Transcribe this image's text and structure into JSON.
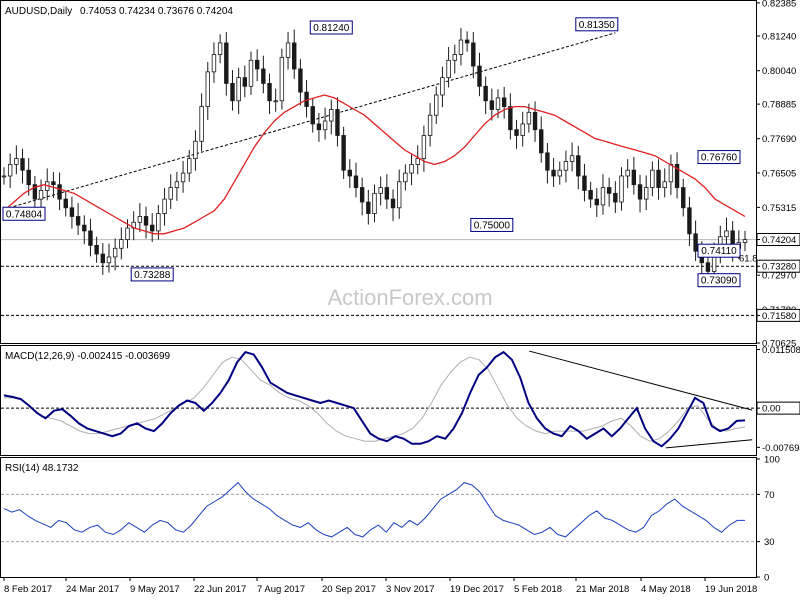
{
  "chart_data": [
    {
      "type": "line",
      "panel": "price",
      "title": "AUDUSD,Daily",
      "ohlc_header": "0.74053 0.74234 0.73676 0.74204",
      "watermark": "ActionForex.com",
      "ylim": [
        0.70625,
        0.8245
      ],
      "y_ticks": [
        "0.82385",
        "0.81240",
        "0.80040",
        "0.78885",
        "0.77690",
        "0.76505",
        "0.75315",
        "0.74204",
        "0.73280",
        "0.72970",
        "0.71780",
        "0.71580",
        "0.70625"
      ],
      "x_ticks": [
        "8 Feb 2017",
        "24 Mar 2017",
        "9 May 2017",
        "22 Jun 2017",
        "7 Aug 2017",
        "20 Sep 2017",
        "3 Nov 2017",
        "19 Dec 2017",
        "5 Feb 2018",
        "21 Mar 2018",
        "4 May 2018",
        "19 Jun 2018"
      ],
      "price_series": [
        0.764,
        0.768,
        0.77,
        0.766,
        0.761,
        0.756,
        0.759,
        0.762,
        0.761,
        0.756,
        0.753,
        0.75,
        0.747,
        0.745,
        0.74,
        0.737,
        0.734,
        0.736,
        0.739,
        0.742,
        0.746,
        0.748,
        0.75,
        0.747,
        0.745,
        0.751,
        0.756,
        0.76,
        0.762,
        0.765,
        0.77,
        0.776,
        0.788,
        0.8,
        0.806,
        0.81,
        0.796,
        0.79,
        0.798,
        0.795,
        0.804,
        0.801,
        0.796,
        0.79,
        0.79,
        0.805,
        0.81,
        0.801,
        0.793,
        0.788,
        0.782,
        0.78,
        0.783,
        0.787,
        0.778,
        0.766,
        0.764,
        0.76,
        0.755,
        0.751,
        0.758,
        0.76,
        0.756,
        0.753,
        0.762,
        0.765,
        0.768,
        0.77,
        0.778,
        0.785,
        0.792,
        0.798,
        0.804,
        0.806,
        0.811,
        0.81,
        0.802,
        0.795,
        0.79,
        0.787,
        0.791,
        0.788,
        0.78,
        0.778,
        0.782,
        0.786,
        0.78,
        0.772,
        0.766,
        0.764,
        0.766,
        0.769,
        0.771,
        0.764,
        0.759,
        0.756,
        0.754,
        0.76,
        0.758,
        0.755,
        0.764,
        0.766,
        0.761,
        0.756,
        0.76,
        0.766,
        0.76,
        0.762,
        0.768,
        0.76,
        0.753,
        0.744,
        0.738,
        0.734,
        0.731,
        0.738,
        0.743,
        0.745,
        0.739,
        0.741,
        0.742
      ],
      "ma_series": [
        0.752,
        0.755,
        0.758,
        0.76,
        0.761,
        0.76,
        0.759,
        0.758,
        0.756,
        0.754,
        0.752,
        0.75,
        0.748,
        0.746,
        0.745,
        0.744,
        0.744,
        0.745,
        0.746,
        0.748,
        0.75,
        0.752,
        0.756,
        0.762,
        0.768,
        0.774,
        0.779,
        0.783,
        0.786,
        0.788,
        0.79,
        0.791,
        0.792,
        0.791,
        0.789,
        0.787,
        0.785,
        0.782,
        0.779,
        0.776,
        0.773,
        0.771,
        0.769,
        0.768,
        0.769,
        0.771,
        0.774,
        0.778,
        0.782,
        0.785,
        0.787,
        0.788,
        0.788,
        0.787,
        0.786,
        0.785,
        0.783,
        0.781,
        0.779,
        0.777,
        0.776,
        0.775,
        0.774,
        0.773,
        0.772,
        0.771,
        0.769,
        0.767,
        0.765,
        0.763,
        0.76,
        0.756,
        0.754,
        0.752,
        0.75
      ],
      "annotations": [
        {
          "text": "0.74804",
          "x": 3,
          "y": 0.748
        },
        {
          "text": "0.73288",
          "x": 24,
          "y": 0.7329
        },
        {
          "text": "0.81240",
          "x": 53,
          "y": 0.8124
        },
        {
          "text": "0.75000",
          "x": 79,
          "y": 0.75
        },
        {
          "text": "0.81350",
          "x": 96,
          "y": 0.8135
        },
        {
          "text": "0.74110",
          "x": 126,
          "y": 0.7411
        },
        {
          "text": "0.76760",
          "x": 134,
          "y": 0.7676
        },
        {
          "text": "0.73090",
          "x": 142,
          "y": 0.7309
        }
      ],
      "fib_label": "61.8",
      "levels": [
        {
          "y": 0.742,
          "label": "0.74204",
          "style": "solid-gray"
        },
        {
          "y": 0.7328,
          "label": "0.73280",
          "style": "dashed"
        },
        {
          "y": 0.7158,
          "label": "0.71580",
          "style": "dashed"
        }
      ],
      "trendline": {
        "from": [
          0,
          0.7525
        ],
        "to": [
          99,
          0.8135
        ]
      }
    },
    {
      "type": "line",
      "panel": "macd",
      "title": "MACD(12,26,9) -0.002415 -0.003699",
      "ylim": [
        -0.0092,
        0.012
      ],
      "y_ticks": [
        "0.011508",
        "0.00",
        "-0.007694"
      ],
      "macd_series": [
        0.0025,
        0.0022,
        0.0018,
        0.0005,
        -0.001,
        -0.002,
        -0.0005,
        -0.0002,
        -0.0015,
        -0.003,
        -0.004,
        -0.0045,
        -0.005,
        -0.0055,
        -0.005,
        -0.0035,
        -0.003,
        -0.004,
        -0.0045,
        -0.003,
        -0.001,
        0.0005,
        0.0015,
        0.001,
        -0.0005,
        0.001,
        0.003,
        0.0055,
        0.009,
        0.011,
        0.0105,
        0.008,
        0.005,
        0.004,
        0.003,
        0.0025,
        0.002,
        0.0015,
        0.001,
        0.0015,
        0.001,
        0.0005,
        0.0,
        -0.0025,
        -0.005,
        -0.006,
        -0.0065,
        -0.0055,
        -0.006,
        -0.007,
        -0.007,
        -0.0065,
        -0.0055,
        -0.006,
        -0.004,
        -0.001,
        0.003,
        0.0065,
        0.008,
        0.01,
        0.011,
        0.0095,
        0.006,
        0.001,
        -0.002,
        -0.004,
        -0.005,
        -0.0055,
        -0.0035,
        -0.0045,
        -0.006,
        -0.005,
        -0.004,
        -0.0055,
        -0.004,
        -0.002,
        0.0,
        -0.004,
        -0.0065,
        -0.0075,
        -0.006,
        -0.004,
        -0.001,
        0.002,
        0.001,
        -0.0035,
        -0.0045,
        -0.004,
        -0.0025,
        -0.0024
      ],
      "signal_series": [
        0.002,
        0.002,
        0.0015,
        0.0,
        -0.0015,
        -0.002,
        -0.0025,
        -0.0035,
        -0.0045,
        -0.005,
        -0.005,
        -0.0045,
        -0.004,
        -0.0035,
        -0.003,
        -0.0025,
        -0.002,
        -0.001,
        0.0,
        0.001,
        0.002,
        0.004,
        0.0065,
        0.009,
        0.01,
        0.0095,
        0.0075,
        0.0055,
        0.0045,
        0.003,
        0.002,
        0.0015,
        0.0005,
        -0.001,
        -0.003,
        -0.0045,
        -0.0055,
        -0.006,
        -0.0065,
        -0.0065,
        -0.006,
        -0.0055,
        -0.005,
        -0.004,
        -0.002,
        0.001,
        0.0045,
        0.007,
        0.009,
        0.01,
        0.0095,
        0.0075,
        0.004,
        0.0005,
        -0.002,
        -0.0035,
        -0.0045,
        -0.005,
        -0.0045,
        -0.0045,
        -0.0045,
        -0.0045,
        -0.004,
        -0.0035,
        -0.0025,
        -0.002,
        -0.0035,
        -0.0055,
        -0.0065,
        -0.006,
        -0.0045,
        -0.0025,
        0.0,
        0.0005,
        -0.002,
        -0.004,
        -0.0045,
        -0.004,
        -0.0037
      ],
      "trendlines": [
        {
          "from": [
            73,
            0.0112
          ],
          "to": [
            104,
            -0.0004
          ]
        },
        {
          "from": [
            92,
            -0.0078
          ],
          "to": [
            104,
            -0.0062
          ]
        }
      ]
    },
    {
      "type": "line",
      "panel": "rsi",
      "title": "RSI(14) 48.1732",
      "ylim": [
        0,
        100
      ],
      "y_ticks": [
        "100",
        "70",
        "30",
        "0"
      ],
      "levels": [
        70,
        30
      ],
      "rsi_series": [
        58,
        55,
        57,
        52,
        48,
        45,
        42,
        48,
        46,
        40,
        38,
        42,
        44,
        38,
        36,
        40,
        46,
        42,
        38,
        44,
        48,
        46,
        40,
        38,
        44,
        52,
        60,
        64,
        68,
        74,
        80,
        72,
        66,
        62,
        58,
        52,
        48,
        44,
        42,
        46,
        40,
        36,
        34,
        38,
        42,
        36,
        34,
        40,
        44,
        38,
        46,
        42,
        48,
        44,
        50,
        58,
        66,
        70,
        74,
        80,
        78,
        72,
        62,
        52,
        48,
        46,
        44,
        40,
        36,
        38,
        42,
        36,
        34,
        40,
        46,
        52,
        56,
        50,
        48,
        44,
        40,
        38,
        42,
        52,
        56,
        62,
        66,
        60,
        56,
        52,
        48,
        42,
        38,
        44,
        48,
        48
      ]
    }
  ]
}
